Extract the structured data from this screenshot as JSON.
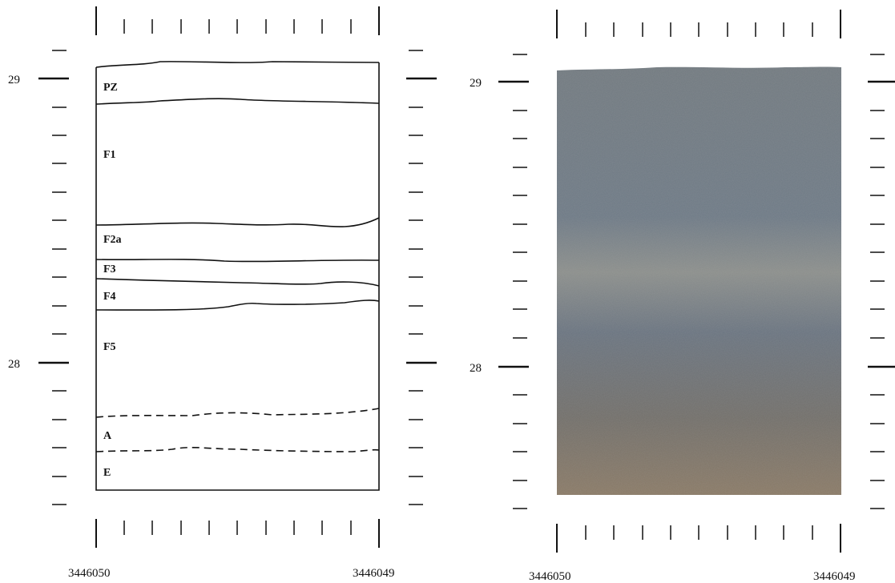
{
  "left_panel": {
    "y_labels": [
      "29",
      "28"
    ],
    "x_labels": [
      "3446050",
      "3446049"
    ],
    "units": [
      {
        "label": "PZ",
        "boundary_style": "solid"
      },
      {
        "label": "F1",
        "boundary_style": "solid"
      },
      {
        "label": "F2a",
        "boundary_style": "solid"
      },
      {
        "label": "F3",
        "boundary_style": "solid"
      },
      {
        "label": "F4",
        "boundary_style": "solid"
      },
      {
        "label": "F5",
        "boundary_style": "dashed"
      },
      {
        "label": "A",
        "boundary_style": "dashed"
      },
      {
        "label": "E",
        "boundary_style": "none"
      }
    ]
  },
  "right_panel": {
    "y_labels": [
      "29",
      "28"
    ],
    "x_labels": [
      "3446050",
      "3446049"
    ],
    "photo_colors": {
      "top": "#727a80",
      "upper": "#6e7a86",
      "light_band": "#8c8f8c",
      "middle": "#6a7480",
      "lower": "#726f6a",
      "bottom": "#8a7a66"
    }
  }
}
